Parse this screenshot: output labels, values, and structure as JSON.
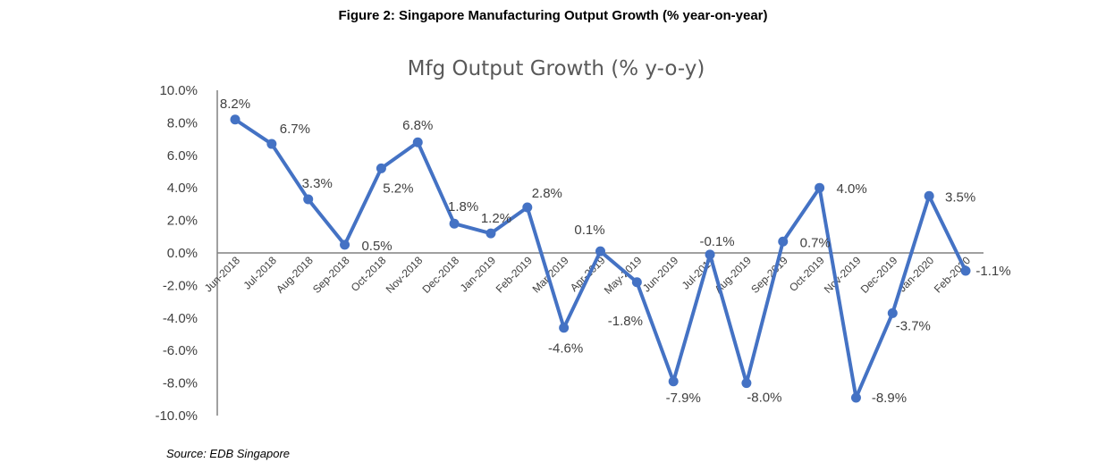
{
  "figure_title": "Figure 2: Singapore Manufacturing Output Growth (% year-on-year)",
  "source": "Source: EDB Singapore",
  "chart_data": {
    "type": "line",
    "title": "Mfg Output Growth (% y-o-y)",
    "xlabel": "",
    "ylabel": "",
    "ylim": [
      -10,
      10
    ],
    "yticks": [
      10,
      8,
      6,
      4,
      2,
      0,
      -2,
      -4,
      -6,
      -8,
      -10
    ],
    "ytick_labels": [
      "10.0%",
      "8.0%",
      "6.0%",
      "4.0%",
      "2.0%",
      "0.0%",
      "-2.0%",
      "-4.0%",
      "-6.0%",
      "-8.0%",
      "-10.0%"
    ],
    "grid": false,
    "line_color": "#4472C4",
    "categories": [
      "Jun-2018",
      "Jul-2018",
      "Aug-2018",
      "Sep-2018",
      "Oct-2018",
      "Nov-2018",
      "Dec-2018",
      "Jan-2019",
      "Feb-2019",
      "Mar-2019",
      "Apr-2019",
      "May-2019",
      "Jun-2019",
      "Jul-2019",
      "Aug-2019",
      "Sep-2019",
      "Oct-2019",
      "Nov-2019",
      "Dec-2019",
      "Jan-2020",
      "Feb-2020"
    ],
    "values": [
      8.2,
      6.7,
      3.3,
      0.5,
      5.2,
      6.8,
      1.8,
      1.2,
      2.8,
      -4.6,
      0.1,
      -1.8,
      -7.9,
      -0.1,
      -8.0,
      0.7,
      4.0,
      -8.9,
      -3.7,
      3.5,
      -1.1
    ],
    "data_labels": [
      "8.2%",
      "6.7%",
      "3.3%",
      "0.5%",
      "5.2%",
      "6.8%",
      "1.8%",
      "1.2%",
      "2.8%",
      "-4.6%",
      "0.1%",
      "-1.8%",
      "-7.9%",
      "-0.1%",
      "-8.0%",
      "0.7%",
      "4.0%",
      "-8.9%",
      "-3.7%",
      "3.5%",
      "-1.1%"
    ]
  }
}
